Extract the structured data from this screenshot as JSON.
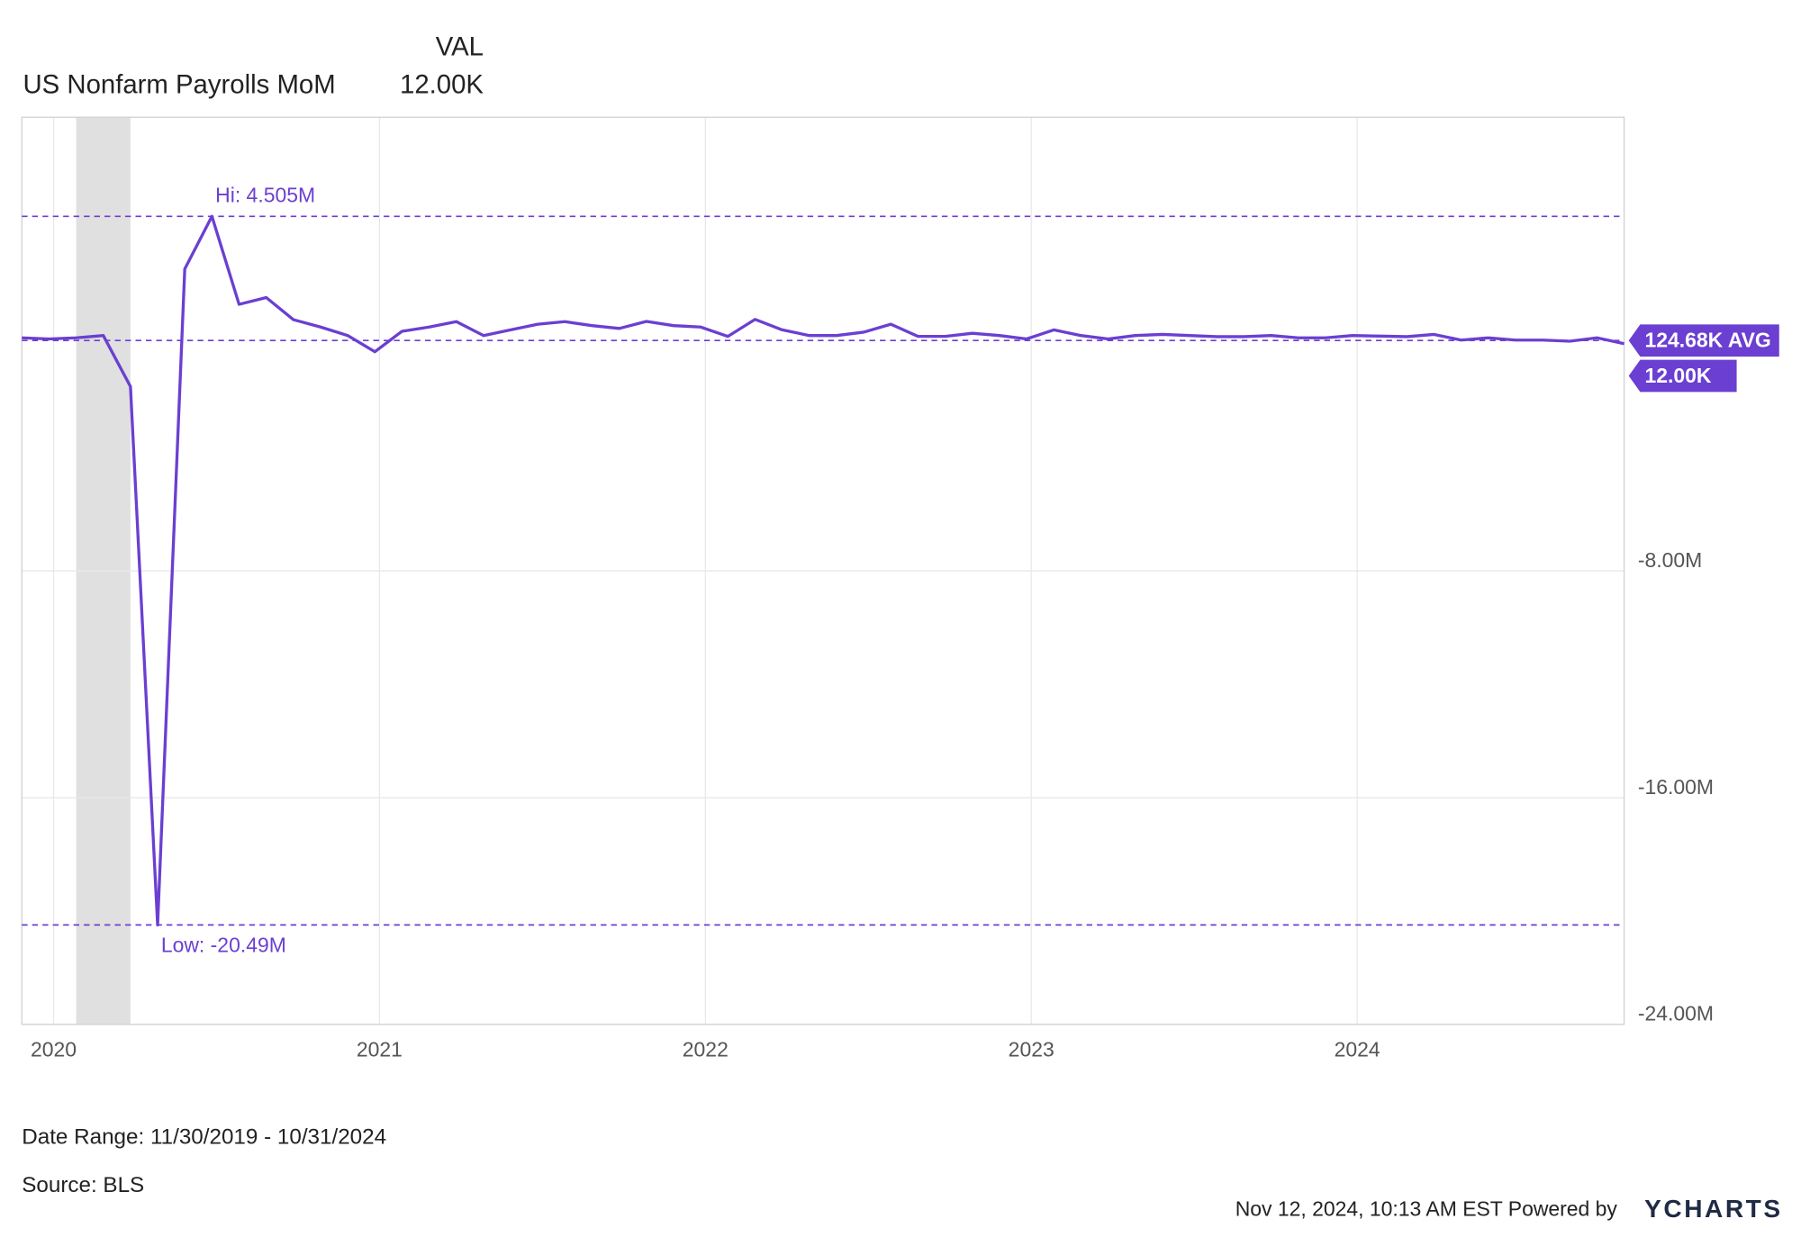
{
  "chart_data": {
    "type": "line",
    "value_header": "VAL",
    "x": [
      "2019-11",
      "2019-12",
      "2020-01",
      "2020-02",
      "2020-03",
      "2020-04",
      "2020-05",
      "2020-06",
      "2020-07",
      "2020-08",
      "2020-09",
      "2020-10",
      "2020-11",
      "2020-12",
      "2021-01",
      "2021-02",
      "2021-03",
      "2021-04",
      "2021-05",
      "2021-06",
      "2021-07",
      "2021-08",
      "2021-09",
      "2021-10",
      "2021-11",
      "2021-12",
      "2022-01",
      "2022-02",
      "2022-03",
      "2022-04",
      "2022-05",
      "2022-06",
      "2022-07",
      "2022-08",
      "2022-09",
      "2022-10",
      "2022-11",
      "2022-12",
      "2023-01",
      "2023-02",
      "2023-03",
      "2023-04",
      "2023-05",
      "2023-06",
      "2023-07",
      "2023-08",
      "2023-09",
      "2023-10",
      "2023-11",
      "2023-12",
      "2024-01",
      "2024-02",
      "2024-03",
      "2024-04",
      "2024-05",
      "2024-06",
      "2024-07",
      "2024-08",
      "2024-09",
      "2024-10"
    ],
    "series": [
      {
        "name": "US Nonfarm Payrolls MoM",
        "color": "#6b3fd1",
        "values": [
          0.22,
          0.18,
          0.22,
          0.3,
          -1.5,
          -20.49,
          2.65,
          4.505,
          1.4,
          1.64,
          0.86,
          0.6,
          0.3,
          -0.27,
          0.45,
          0.6,
          0.79,
          0.3,
          0.5,
          0.7,
          0.79,
          0.65,
          0.55,
          0.8,
          0.65,
          0.6,
          0.27,
          0.87,
          0.5,
          0.3,
          0.3,
          0.42,
          0.7,
          0.27,
          0.27,
          0.38,
          0.3,
          0.18,
          0.5,
          0.3,
          0.18,
          0.3,
          0.34,
          0.3,
          0.26,
          0.26,
          0.3,
          0.22,
          0.22,
          0.3,
          0.28,
          0.26,
          0.34,
          0.14,
          0.22,
          0.14,
          0.14,
          0.1,
          0.22,
          0.012
        ]
      }
    ],
    "xlim": [
      "2019-11",
      "2024-10"
    ],
    "xticks": [
      "2020",
      "2021",
      "2022",
      "2023",
      "2024"
    ],
    "ylim": [
      -24,
      8
    ],
    "yticks": [
      {
        "value": -24,
        "label": "-24.00M"
      },
      {
        "value": -16,
        "label": "-16.00M"
      },
      {
        "value": -8,
        "label": "-8.00M"
      }
    ],
    "grid": true,
    "recession": {
      "start": "2020-02",
      "end": "2020-04"
    },
    "hi": {
      "value": 4.505,
      "label": "Hi: 4.505M"
    },
    "low": {
      "value": -20.49,
      "label": "Low: -20.49M"
    },
    "average": {
      "value": 0.12468,
      "label": "124.68K AVG"
    },
    "latest": {
      "value": 0.012,
      "label": "12.00K"
    },
    "date_range": "Date Range: 11/30/2019 - 10/31/2024",
    "source": "Source: BLS",
    "timestamp": "Nov 12, 2024, 10:13 AM EST Powered by",
    "brand": "YCHARTS"
  }
}
